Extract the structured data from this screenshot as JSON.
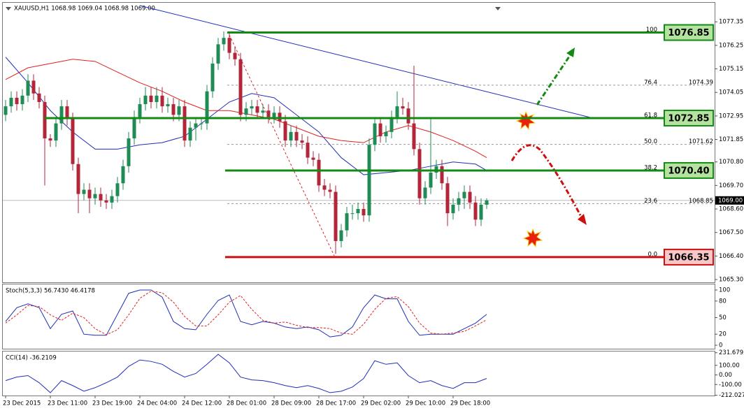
{
  "chart_data": {
    "type": "candlestick",
    "title": "XAUUSD,H1 1068.98 1069.04 1068.98 1069.00",
    "up_color": "#1f8c55",
    "down_color": "#b3263a",
    "ylim": [
      1065.17,
      1078.24
    ],
    "yticks": [
      1077.35,
      1076.25,
      1075.15,
      1074.05,
      1072.95,
      1071.85,
      {
        "value": 1070.8,
        "label": "1070.80"
      },
      {
        "value": 1069.7,
        "label": "1069.70"
      },
      {
        "value": 1068.6,
        "label": "1068.60"
      },
      {
        "value": 1067.5,
        "label": "1067.50"
      },
      {
        "value": 1066.4,
        "label": "1066.40"
      },
      {
        "value": 1065.3,
        "label": "1065.30"
      }
    ],
    "categories": [
      "23 Dec 2015",
      null,
      null,
      null,
      null,
      null,
      null,
      null,
      "23 Dec 11:00",
      null,
      null,
      null,
      null,
      null,
      null,
      null,
      "23 Dec 19:00",
      null,
      null,
      null,
      null,
      null,
      null,
      null,
      "24 Dec 04:00",
      null,
      null,
      null,
      null,
      null,
      null,
      null,
      "24 Dec 12:00",
      null,
      null,
      null,
      null,
      null,
      null,
      null,
      "28 Dec 01:00",
      null,
      null,
      null,
      null,
      null,
      null,
      null,
      "28 Dec 09:00",
      null,
      null,
      null,
      null,
      null,
      null,
      null,
      "28 Dec 17:00",
      null,
      null,
      null,
      null,
      null,
      null,
      null,
      "29 Dec 02:00",
      null,
      null,
      null,
      null,
      null,
      null,
      null,
      "29 Dec 10:00",
      null,
      null,
      null,
      null,
      null,
      null,
      null,
      "29 Dec 18:00",
      null,
      null,
      null,
      null,
      null,
      null
    ],
    "candles": [
      [
        1073.0,
        1073.7,
        1072.7,
        1073.4
      ],
      [
        1073.4,
        1074.1,
        1073.1,
        1073.8
      ],
      [
        1073.8,
        1074.1,
        1073.2,
        1073.5
      ],
      [
        1073.5,
        1074.2,
        1073.2,
        1073.9
      ],
      [
        1073.9,
        1074.9,
        1073.6,
        1074.6
      ],
      [
        1074.6,
        1074.9,
        1073.7,
        1074.0
      ],
      [
        1074.0,
        1074.3,
        1073.3,
        1073.6
      ],
      [
        1073.6,
        1073.9,
        1069.7,
        1071.9
      ],
      [
        1071.9,
        1072.1,
        1071.5,
        1071.8
      ],
      [
        1071.8,
        1072.9,
        1071.5,
        1072.6
      ],
      [
        1072.6,
        1073.7,
        1072.3,
        1073.4
      ],
      [
        1073.4,
        1073.7,
        1072.5,
        1072.8
      ],
      [
        1072.8,
        1073.1,
        1070.4,
        1070.7
      ],
      [
        1070.7,
        1071.0,
        1068.4,
        1069.3
      ],
      [
        1069.3,
        1069.8,
        1069.0,
        1069.5
      ],
      [
        1069.5,
        1069.8,
        1068.4,
        1069.1
      ],
      [
        1069.1,
        1069.6,
        1068.8,
        1069.3
      ],
      [
        1069.3,
        1069.6,
        1068.7,
        1069.0
      ],
      [
        1069.0,
        1069.3,
        1068.6,
        1068.9
      ],
      [
        1068.9,
        1069.5,
        1068.6,
        1069.2
      ],
      [
        1069.2,
        1070.1,
        1068.9,
        1069.8
      ],
      [
        1069.8,
        1070.9,
        1069.5,
        1070.6
      ],
      [
        1070.6,
        1072.2,
        1070.3,
        1071.9
      ],
      [
        1071.9,
        1073.2,
        1071.6,
        1072.9
      ],
      [
        1072.9,
        1073.8,
        1072.6,
        1073.5
      ],
      [
        1073.5,
        1074.3,
        1073.2,
        1073.9
      ],
      [
        1073.9,
        1074.3,
        1073.3,
        1073.6
      ],
      [
        1073.6,
        1074.3,
        1073.3,
        1073.9
      ],
      [
        1073.9,
        1074.3,
        1073.1,
        1073.4
      ],
      [
        1073.4,
        1073.8,
        1073.1,
        1073.5
      ],
      [
        1073.5,
        1073.8,
        1072.7,
        1073.0
      ],
      [
        1073.0,
        1073.7,
        1072.7,
        1073.4
      ],
      [
        1073.4,
        1073.7,
        1071.5,
        1071.8
      ],
      [
        1071.8,
        1072.7,
        1071.5,
        1072.4
      ],
      [
        1072.4,
        1072.9,
        1071.8,
        1072.6
      ],
      [
        1072.6,
        1072.9,
        1072.3,
        1072.6
      ],
      [
        1072.6,
        1074.4,
        1072.3,
        1074.1
      ],
      [
        1074.1,
        1075.7,
        1073.8,
        1075.4
      ],
      [
        1075.4,
        1076.6,
        1075.1,
        1076.3
      ],
      [
        1076.3,
        1076.9,
        1076.0,
        1076.6
      ],
      [
        1076.6,
        1076.9,
        1075.6,
        1075.9
      ],
      [
        1075.9,
        1076.2,
        1075.3,
        1075.6
      ],
      [
        1075.6,
        1075.9,
        1072.7,
        1073.0
      ],
      [
        1073.0,
        1073.6,
        1072.7,
        1073.3
      ],
      [
        1073.3,
        1073.7,
        1073.0,
        1073.4
      ],
      [
        1073.4,
        1073.7,
        1072.8,
        1073.1
      ],
      [
        1073.1,
        1073.5,
        1072.9,
        1073.2
      ],
      [
        1073.2,
        1073.5,
        1072.6,
        1072.9
      ],
      [
        1072.9,
        1073.4,
        1072.6,
        1073.1
      ],
      [
        1073.1,
        1073.4,
        1072.4,
        1072.7
      ],
      [
        1072.7,
        1073.0,
        1071.5,
        1071.8
      ],
      [
        1071.8,
        1072.5,
        1071.5,
        1072.2
      ],
      [
        1072.2,
        1072.5,
        1071.5,
        1071.8
      ],
      [
        1071.8,
        1072.1,
        1071.4,
        1071.7
      ],
      [
        1071.7,
        1072.0,
        1070.7,
        1071.0
      ],
      [
        1071.0,
        1071.3,
        1070.6,
        1070.9
      ],
      [
        1070.9,
        1071.2,
        1069.4,
        1069.7
      ],
      [
        1069.7,
        1070.0,
        1069.2,
        1069.5
      ],
      [
        1069.5,
        1069.8,
        1069.1,
        1069.4
      ],
      [
        1069.4,
        1069.7,
        1066.5,
        1067.1
      ],
      [
        1067.1,
        1067.9,
        1066.8,
        1067.6
      ],
      [
        1067.6,
        1068.7,
        1067.3,
        1068.4
      ],
      [
        1068.4,
        1068.8,
        1068.1,
        1068.4
      ],
      [
        1068.4,
        1068.9,
        1068.1,
        1068.6
      ],
      [
        1068.6,
        1068.9,
        1068.0,
        1068.3
      ],
      [
        1068.3,
        1071.9,
        1068.0,
        1071.6
      ],
      [
        1071.6,
        1072.9,
        1071.3,
        1072.6
      ],
      [
        1072.6,
        1072.9,
        1071.7,
        1072.0
      ],
      [
        1072.0,
        1072.5,
        1071.7,
        1072.2
      ],
      [
        1072.2,
        1073.2,
        1071.9,
        1072.9
      ],
      [
        1072.9,
        1074.1,
        1072.6,
        1073.4
      ],
      [
        1073.4,
        1073.8,
        1073.0,
        1073.3
      ],
      [
        1073.3,
        1073.6,
        1072.3,
        1072.6
      ],
      [
        1072.6,
        1075.3,
        1071.1,
        1071.4
      ],
      [
        1071.4,
        1071.7,
        1068.8,
        1069.1
      ],
      [
        1069.1,
        1069.9,
        1068.8,
        1069.6
      ],
      [
        1069.6,
        1072.9,
        1069.3,
        1070.3
      ],
      [
        1070.3,
        1070.9,
        1070.0,
        1070.6
      ],
      [
        1070.6,
        1070.9,
        1069.5,
        1069.8
      ],
      [
        1069.8,
        1070.1,
        1067.8,
        1068.4
      ],
      [
        1068.4,
        1069.1,
        1068.1,
        1068.8
      ],
      [
        1068.8,
        1069.4,
        1068.5,
        1069.1
      ],
      [
        1069.1,
        1069.7,
        1068.6,
        1069.4
      ],
      [
        1069.4,
        1069.7,
        1068.6,
        1068.9
      ],
      [
        1068.9,
        1069.2,
        1067.8,
        1068.1
      ],
      [
        1068.1,
        1069.1,
        1067.8,
        1068.8
      ],
      [
        1068.8,
        1069.1,
        1068.6,
        1069.0
      ]
    ],
    "moving_averages": [
      {
        "color": "#1f2fb8",
        "x": [
          0,
          4,
          8,
          12,
          16,
          20,
          24,
          28,
          32,
          36,
          40,
          44,
          48,
          52,
          56,
          60,
          64,
          68,
          72,
          76,
          80,
          84,
          86
        ],
        "values": [
          1075.7,
          1074.5,
          1073.2,
          1072.2,
          1071.4,
          1071.4,
          1071.6,
          1071.7,
          1072.0,
          1072.8,
          1073.6,
          1074.0,
          1073.8,
          1073.0,
          1072.2,
          1071.0,
          1070.2,
          1070.3,
          1070.4,
          1070.6,
          1070.8,
          1070.7,
          1070.4
        ]
      },
      {
        "color": "#e02020",
        "x": [
          0,
          4,
          8,
          12,
          16,
          20,
          24,
          28,
          32,
          36,
          40,
          44,
          48,
          52,
          56,
          60,
          64,
          68,
          72,
          76,
          80,
          84,
          86
        ],
        "values": [
          1074.65,
          1075.2,
          1075.4,
          1075.6,
          1075.5,
          1075.0,
          1074.5,
          1074.1,
          1073.6,
          1073.2,
          1073.2,
          1073.0,
          1072.8,
          1072.4,
          1072.0,
          1071.8,
          1071.7,
          1072.2,
          1072.5,
          1072.2,
          1071.8,
          1071.3,
          1071.0
        ]
      }
    ],
    "levels": [
      {
        "value": 1076.85,
        "color": "#138a13",
        "fill": "#b4e39f"
      },
      {
        "value": 1072.85,
        "color": "#138a13",
        "fill": "#b4e39f"
      },
      {
        "value": 1070.4,
        "color": "#138a13",
        "fill": "#b4e39f",
        "label": "1070.40"
      },
      {
        "value": 1066.35,
        "color": "#cc1010",
        "fill": "#f9c7c7"
      }
    ],
    "fibonacci": [
      {
        "level": 100,
        "at": 1076.85
      },
      {
        "level": 76.4,
        "price": 1074.39
      },
      {
        "level": 61.8,
        "at": 1072.85
      },
      {
        "level": {
          "value": 50,
          "label": "50.0"
        },
        "price": 1071.62
      },
      {
        "level": 38.2,
        "at": 1070.4
      },
      {
        "level": 23.6,
        "price": 1068.85
      },
      {
        "level": {
          "value": 0,
          "label": "0.0"
        },
        "at": 1066.35
      }
    ],
    "last_price": {
      "value": 1069,
      "label": "1069.00"
    },
    "indicators": [
      {
        "title": "Stoch(5,3,3) 56.7430 46.4178",
        "ylim": [
          -7.6,
          110.1
        ],
        "yticks": [
          100,
          80,
          50,
          20,
          0
        ],
        "series": [
          {
            "color": "#1f2fb8",
            "x": [
              0,
              2,
              4,
              6,
              8,
              10,
              12,
              14,
              16,
              18,
              20,
              22,
              24,
              26,
              28,
              30,
              32,
              34,
              36,
              38,
              40,
              42,
              44,
              46,
              48,
              50,
              52,
              54,
              56,
              58,
              60,
              62,
              64,
              66,
              68,
              70,
              72,
              74,
              76,
              78,
              80,
              82,
              84,
              86
            ],
            "values": [
              43,
              68,
              75,
              68,
              30,
              56,
              62,
              20,
              18,
              18,
              56,
              94,
              100,
              100,
              87,
              43,
              30,
              28,
              56,
              81,
              91,
              43,
              37,
              43,
              40,
              33,
              30,
              33,
              28,
              15,
              18,
              33,
              68,
              91,
              84,
              84,
              43,
              18,
              20,
              20,
              20,
              30,
              40,
              56
            ]
          },
          {
            "color": "#e02020",
            "dashed": true,
            "x": [
              0,
              2,
              4,
              6,
              8,
              10,
              12,
              14,
              16,
              18,
              20,
              22,
              24,
              26,
              28,
              30,
              32,
              34,
              36,
              38,
              40,
              42,
              44,
              46,
              48,
              50,
              52,
              54,
              56,
              58,
              60,
              62,
              64,
              66,
              68,
              70,
              72,
              74,
              76,
              78,
              80,
              82,
              84,
              86
            ],
            "values": [
              40,
              55,
              72,
              70,
              55,
              45,
              58,
              50,
              30,
              19,
              28,
              55,
              85,
              98,
              95,
              78,
              52,
              35,
              35,
              55,
              78,
              90,
              65,
              45,
              40,
              42,
              36,
              32,
              32,
              30,
              22,
              20,
              38,
              65,
              85,
              88,
              70,
              40,
              22,
              20,
              22,
              25,
              35,
              46
            ]
          }
        ]
      },
      {
        "title": "CCI(14) -36.2109",
        "ylim": [
          -214.8,
          244.4
        ],
        "yticks": [
          231.6793,
          {
            "value": 100,
            "label": "100.00"
          },
          {
            "value": 0,
            "label": "0.00"
          },
          {
            "value": -100,
            "label": "-100.00"
          },
          -212.0273
        ],
        "series": [
          {
            "color": "#1f2fb8",
            "x": [
              0,
              2,
              4,
              6,
              8,
              10,
              12,
              14,
              16,
              18,
              20,
              22,
              24,
              26,
              28,
              30,
              32,
              34,
              36,
              38,
              40,
              42,
              44,
              46,
              48,
              50,
              52,
              54,
              56,
              58,
              60,
              62,
              64,
              66,
              68,
              70,
              72,
              74,
              76,
              78,
              80,
              82,
              84,
              86
            ],
            "values": [
              -59,
              -22,
              -7,
              -81,
              -185,
              -59,
              -111,
              -170,
              -133,
              -81,
              -22,
              89,
              156,
              141,
              111,
              37,
              -22,
              15,
              111,
              215,
              126,
              -22,
              -52,
              -59,
              -81,
              -111,
              -133,
              -111,
              -141,
              -185,
              -170,
              -126,
              -37,
              148,
              111,
              126,
              -7,
              -81,
              -59,
              -111,
              -141,
              -81,
              -81,
              -37
            ]
          }
        ]
      }
    ]
  }
}
